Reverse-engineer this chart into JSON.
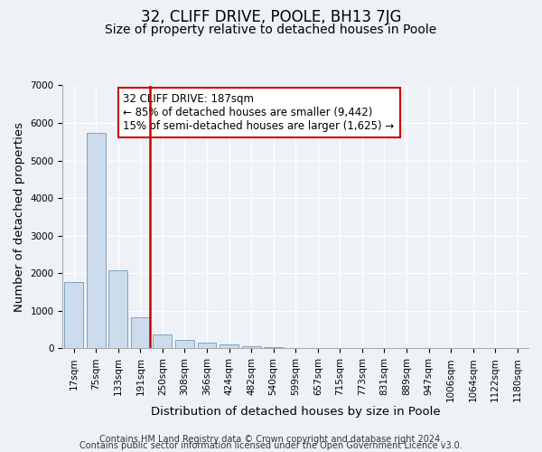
{
  "title": "32, CLIFF DRIVE, POOLE, BH13 7JG",
  "subtitle": "Size of property relative to detached houses in Poole",
  "xlabel": "Distribution of detached houses by size in Poole",
  "ylabel": "Number of detached properties",
  "bar_labels": [
    "17sqm",
    "75sqm",
    "133sqm",
    "191sqm",
    "250sqm",
    "308sqm",
    "366sqm",
    "424sqm",
    "482sqm",
    "540sqm",
    "599sqm",
    "657sqm",
    "715sqm",
    "773sqm",
    "831sqm",
    "889sqm",
    "947sqm",
    "1006sqm",
    "1064sqm",
    "1122sqm",
    "1180sqm"
  ],
  "bar_values": [
    1760,
    5730,
    2080,
    820,
    380,
    235,
    155,
    100,
    60,
    35,
    20,
    10,
    5,
    0,
    0,
    0,
    0,
    0,
    0,
    0,
    0
  ],
  "bar_color": "#ccdcec",
  "bar_edge_color": "#7098b8",
  "vline_color": "#cc0000",
  "vline_bar_index": 3,
  "annotation_box_text_line1": "32 CLIFF DRIVE: 187sqm",
  "annotation_box_text_line2": "← 85% of detached houses are smaller (9,442)",
  "annotation_box_text_line3": "15% of semi-detached houses are larger (1,625) →",
  "box_edge_color": "#cc0000",
  "ylim": [
    0,
    7000
  ],
  "yticks": [
    0,
    1000,
    2000,
    3000,
    4000,
    5000,
    6000,
    7000
  ],
  "footer_line1": "Contains HM Land Registry data © Crown copyright and database right 2024.",
  "footer_line2": "Contains public sector information licensed under the Open Government Licence v3.0.",
  "background_color": "#eef2f7",
  "grid_color": "#ffffff",
  "title_fontsize": 12,
  "subtitle_fontsize": 10,
  "axis_label_fontsize": 9.5,
  "tick_fontsize": 7.5,
  "annotation_fontsize": 8.5,
  "footer_fontsize": 7
}
